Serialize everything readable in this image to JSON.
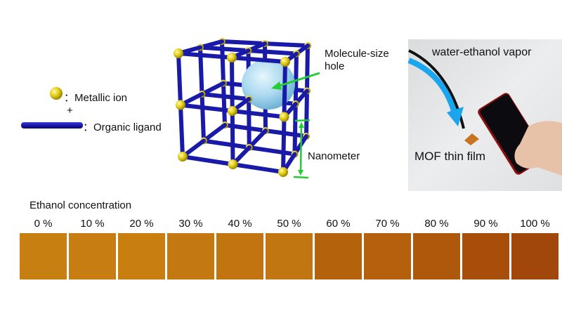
{
  "legend": {
    "metallic_ion": "：Metallic ion",
    "plus": "+",
    "organic_ligand": "：Organic ligand"
  },
  "framework": {
    "hole_label_line1": "Molecule-size",
    "hole_label_line2": "hole",
    "scale_label": "Nanometer",
    "colors": {
      "ligand": "#1a1aa8",
      "ion": "#e8d21c",
      "hole": "#a9d8ee",
      "annotation": "#22cc33"
    }
  },
  "photo": {
    "vapor_label": "water-ethanol vapor",
    "film_label": "MOF thin film",
    "arrow_color": "#1aa6ee"
  },
  "concentration": {
    "title": "Ethanol concentration",
    "samples": [
      {
        "label": "0 %",
        "color": "#c77f12"
      },
      {
        "label": "10 %",
        "color": "#c77d12"
      },
      {
        "label": "20 %",
        "color": "#c97e10"
      },
      {
        "label": "30 %",
        "color": "#c47812"
      },
      {
        "label": "40 %",
        "color": "#c17410"
      },
      {
        "label": "50 %",
        "color": "#c27612"
      },
      {
        "label": "60 %",
        "color": "#b5620c"
      },
      {
        "label": "70 %",
        "color": "#b4600c"
      },
      {
        "label": "80 %",
        "color": "#ad580b"
      },
      {
        "label": "90 %",
        "color": "#a94e0a"
      },
      {
        "label": "100 %",
        "color": "#a2470b"
      }
    ]
  }
}
